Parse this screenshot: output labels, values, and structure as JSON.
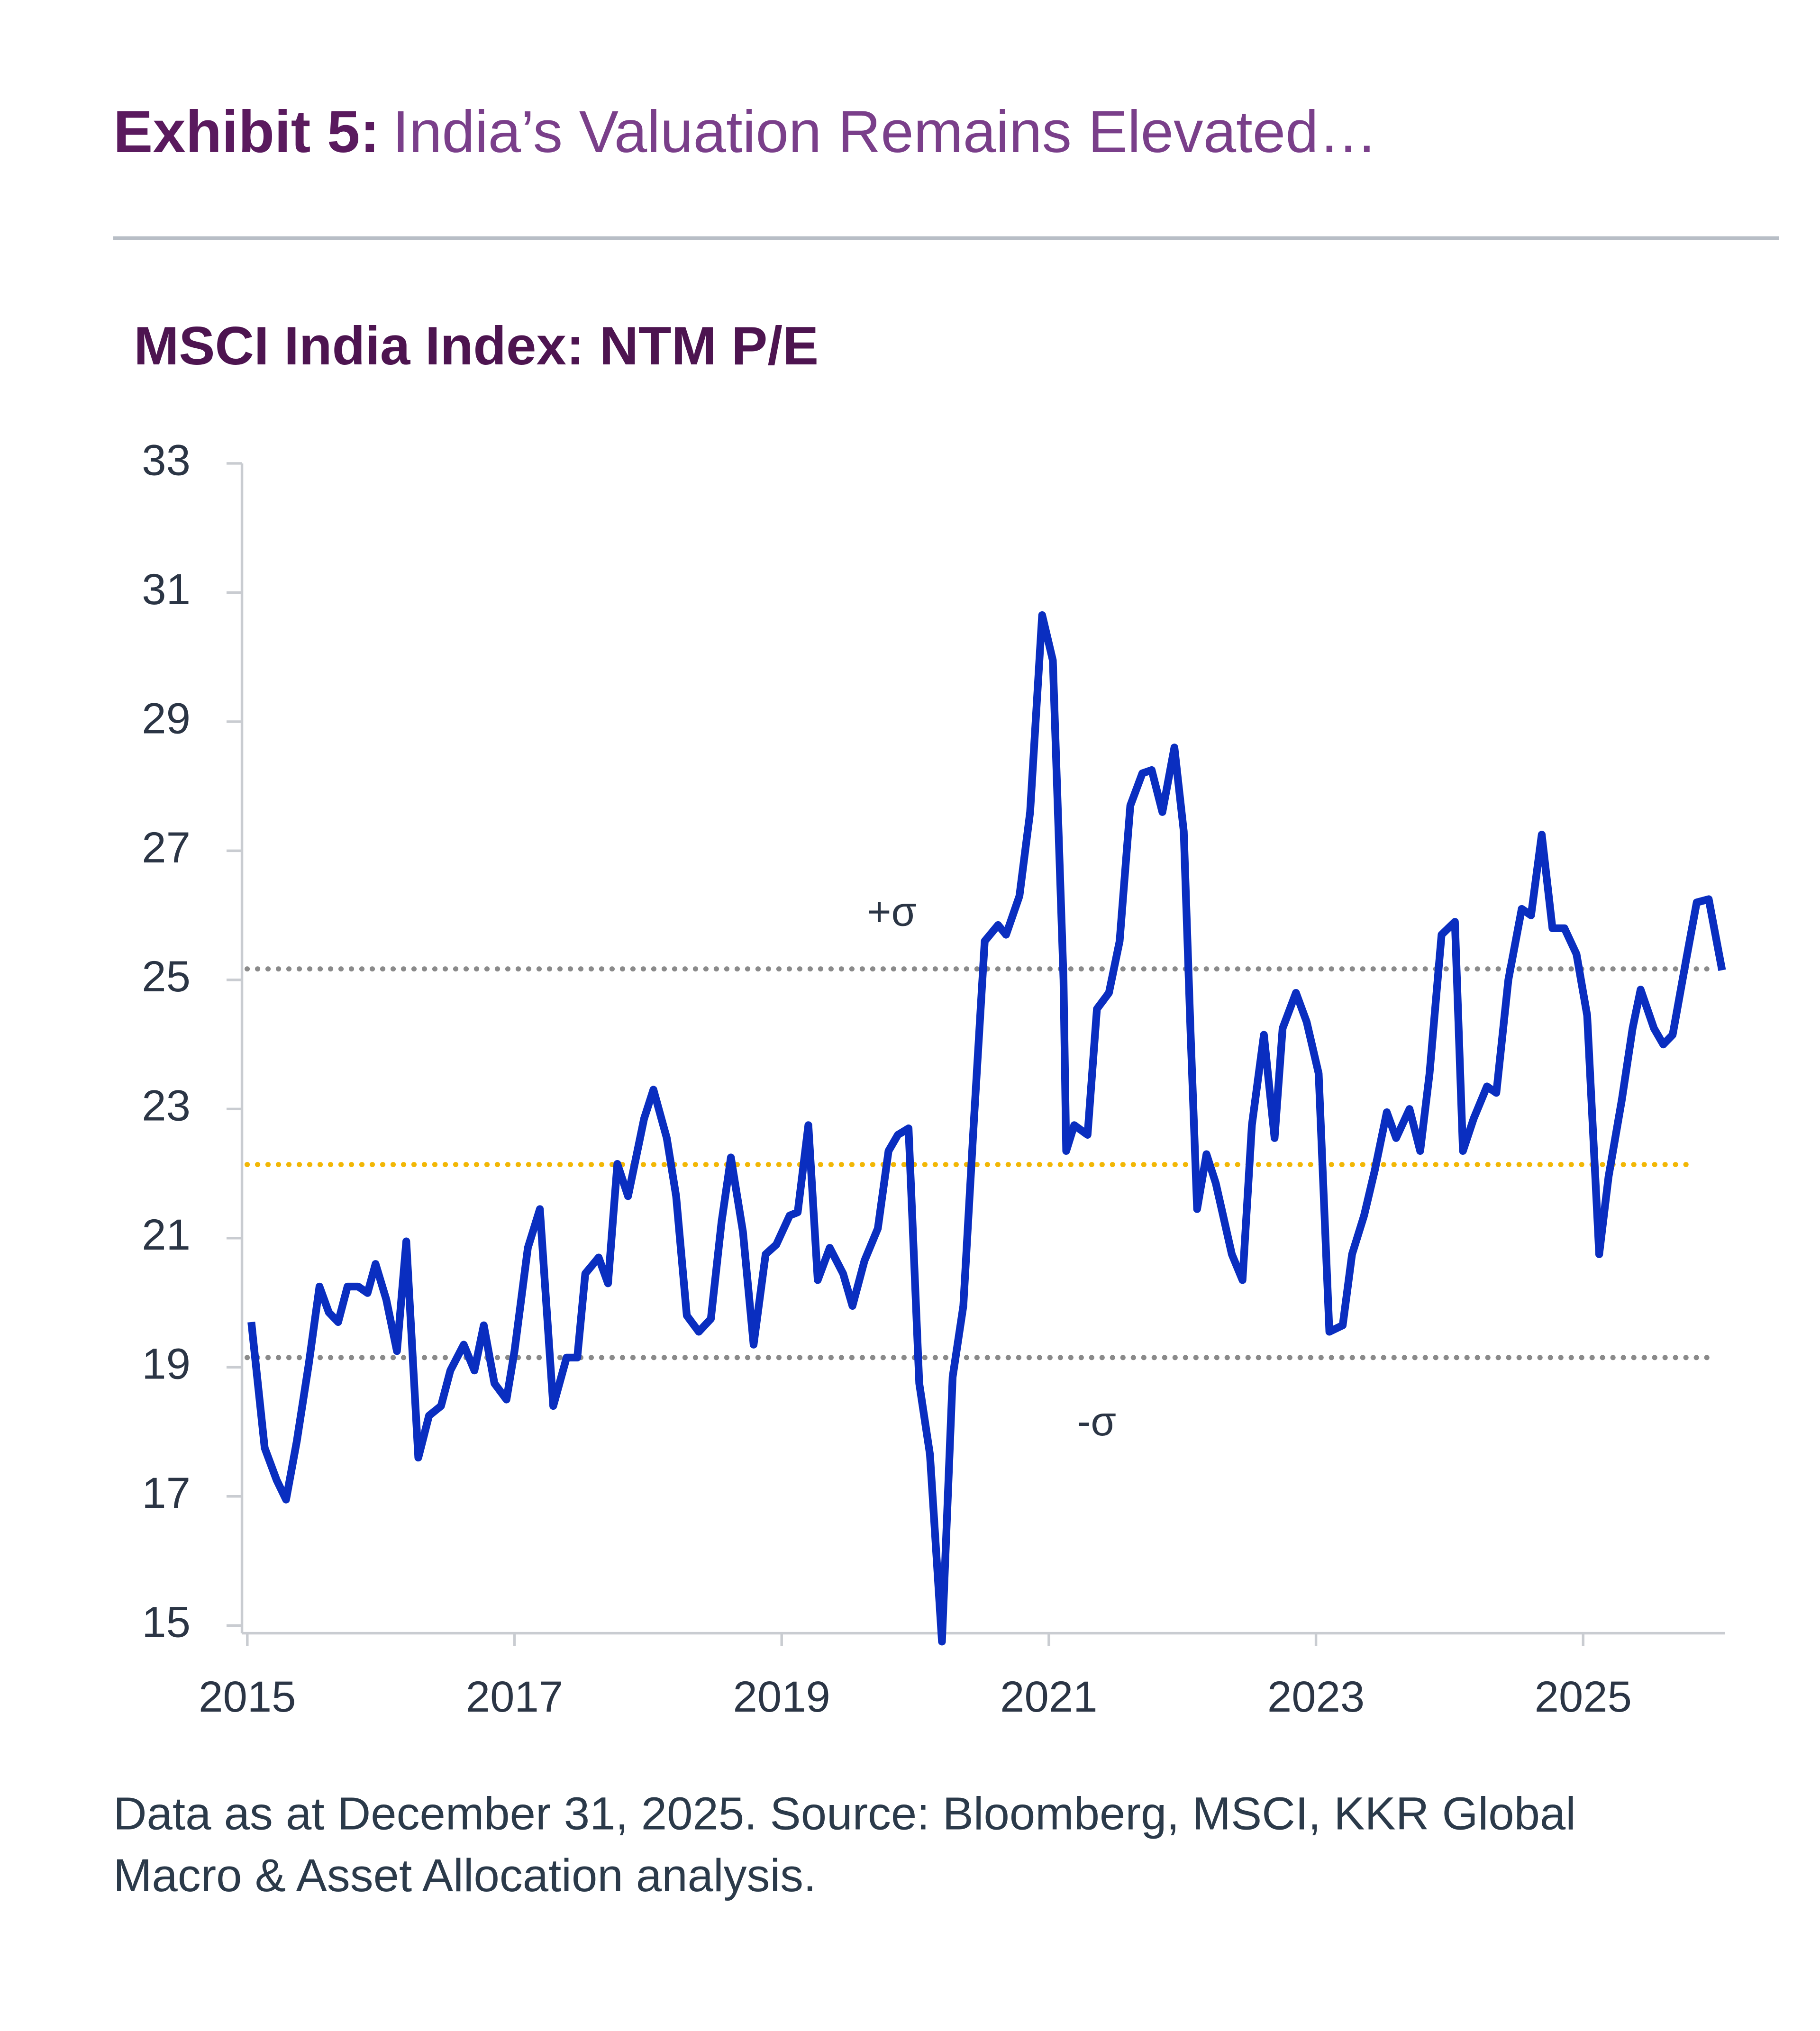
{
  "chart_data": {
    "type": "line",
    "exhibit_label": "Exhibit 5:",
    "title": "India’s Valuation Remains Elevated…",
    "subtitle": "MSCI India Index: NTM P/E",
    "note": [
      "Data as at December 31, 2025. Source: Bloomberg, MSCI, KKR Global",
      "Macro & Asset Allocation analysis."
    ],
    "xlim": [
      2014.96,
      2026.06
    ],
    "xticks": [
      2015,
      2017,
      2019,
      2021,
      2023,
      2025
    ],
    "ylim": [
      15,
      33
    ],
    "yticks": [
      15,
      17,
      19,
      21,
      23,
      25,
      27,
      29,
      31,
      33
    ],
    "x": [
      2015.03,
      2015.13,
      2015.22,
      2015.29,
      2015.37,
      2015.46,
      2015.54,
      2015.61,
      2015.68,
      2015.75,
      2015.83,
      2015.9,
      2015.96,
      2016.04,
      2016.12,
      2016.19,
      2016.28,
      2016.36,
      2016.45,
      2016.52,
      2016.62,
      2016.7,
      2016.77,
      2016.85,
      2016.94,
      2017.0,
      2017.1,
      2017.19,
      2017.29,
      2017.39,
      2017.47,
      2017.53,
      2017.63,
      2017.7,
      2017.77,
      2017.85,
      2017.97,
      2018.04,
      2018.14,
      2018.21,
      2018.29,
      2018.38,
      2018.47,
      2018.55,
      2018.62,
      2018.71,
      2018.79,
      2018.88,
      2018.96,
      2019.06,
      2019.12,
      2019.2,
      2019.27,
      2019.36,
      2019.46,
      2019.53,
      2019.62,
      2019.72,
      2019.8,
      2019.87,
      2019.95,
      2020.03,
      2020.11,
      2020.2,
      2020.28,
      2020.36,
      2020.44,
      2020.52,
      2020.62,
      2020.68,
      2020.78,
      2020.86,
      2020.95,
      2021.03,
      2021.11,
      2021.13,
      2021.19,
      2021.29,
      2021.36,
      2021.45,
      2021.53,
      2021.61,
      2021.7,
      2021.77,
      2021.85,
      2021.94,
      2022.01,
      2022.06,
      2022.11,
      2022.18,
      2022.25,
      2022.37,
      2022.45,
      2022.52,
      2022.61,
      2022.69,
      2022.75,
      2022.85,
      2022.93,
      2023.02,
      2023.1,
      2023.2,
      2023.27,
      2023.36,
      2023.44,
      2023.53,
      2023.6,
      2023.7,
      2023.78,
      2023.85,
      2023.94,
      2024.04,
      2024.1,
      2024.18,
      2024.28,
      2024.35,
      2024.44,
      2024.54,
      2024.61,
      2024.69,
      2024.77,
      2024.86,
      2024.95,
      2025.03,
      2025.12,
      2025.19,
      2025.29,
      2025.37,
      2025.43,
      2025.53,
      2025.6,
      2025.67,
      2025.77,
      2025.85,
      2025.94,
      2026.04
    ],
    "series": [
      {
        "color": "#0a2ec0",
        "values": [
          19.7,
          17.75,
          17.25,
          16.95,
          17.85,
          19.05,
          20.25,
          19.85,
          19.7,
          20.25,
          20.25,
          20.15,
          20.6,
          20.05,
          19.25,
          20.95,
          17.6,
          18.25,
          18.4,
          18.95,
          19.35,
          18.95,
          19.65,
          18.75,
          18.5,
          19.25,
          20.85,
          21.45,
          18.4,
          19.15,
          19.15,
          20.45,
          20.7,
          20.3,
          22.15,
          21.65,
          22.85,
          23.3,
          22.55,
          21.65,
          19.8,
          19.55,
          19.75,
          21.25,
          22.25,
          21.1,
          19.35,
          20.75,
          20.9,
          21.35,
          21.4,
          22.75,
          20.35,
          20.85,
          20.45,
          19.95,
          20.65,
          21.15,
          22.35,
          22.6,
          22.7,
          18.75,
          17.65,
          14.75,
          18.85,
          19.95,
          22.85,
          25.6,
          25.85,
          25.7,
          26.3,
          27.6,
          30.65,
          29.95,
          25.0,
          22.35,
          22.75,
          22.6,
          24.55,
          24.8,
          25.6,
          27.7,
          28.2,
          28.25,
          27.6,
          28.6,
          27.3,
          24.25,
          21.45,
          22.3,
          21.85,
          20.75,
          20.35,
          22.75,
          24.15,
          22.55,
          24.25,
          24.8,
          24.35,
          23.55,
          19.55,
          19.65,
          20.75,
          21.35,
          22.05,
          22.95,
          22.55,
          23.0,
          22.35,
          23.55,
          25.7,
          25.9,
          22.35,
          22.85,
          23.35,
          23.25,
          25.0,
          26.1,
          26.0,
          27.25,
          25.8,
          25.8,
          25.4,
          24.45,
          20.75,
          21.95,
          23.15,
          24.25,
          24.85,
          24.25,
          24.0,
          24.15,
          25.3,
          26.2,
          26.25,
          25.15
        ]
      }
    ],
    "reference_lines": [
      {
        "label": "+σ",
        "value": 25.17,
        "color": "#8a8a8a"
      },
      {
        "value": 22.14,
        "color": "#f2b705"
      },
      {
        "label": "-σ",
        "value": 19.15,
        "color": "#8a8a8a"
      }
    ]
  }
}
